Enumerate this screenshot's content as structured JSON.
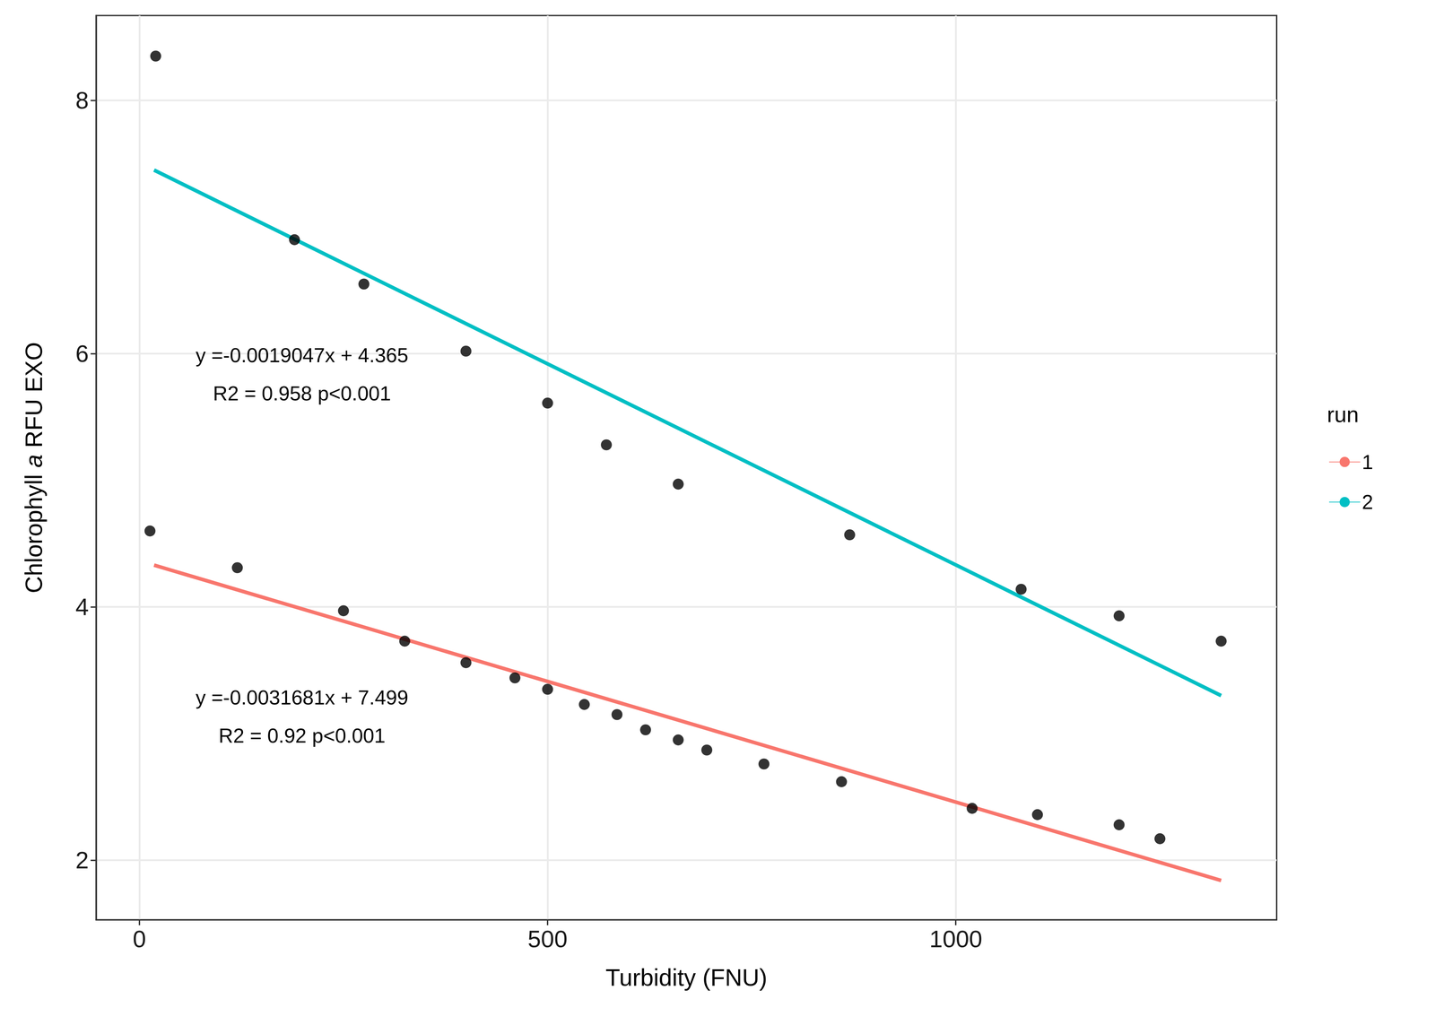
{
  "chart_data": {
    "type": "scatter",
    "x_label": "Turbidity (FNU)",
    "y_label": "Chlorophyll a RFU EXO",
    "xlim": [
      -53,
      1393
    ],
    "ylim": [
      1.53,
      8.67
    ],
    "xticks": [
      0,
      500,
      1000
    ],
    "yticks": [
      2,
      4,
      6,
      8
    ],
    "grid": true,
    "legend": "right",
    "legend_title": "run",
    "series": [
      {
        "name": "1",
        "color": "#F8766D",
        "marker": "circle",
        "line_style": "solid",
        "x": [
          13,
          120,
          250,
          325,
          400,
          460,
          500,
          545,
          585,
          620,
          660,
          695,
          765,
          860,
          1020,
          1100,
          1200,
          1250
        ],
        "values": [
          4.6,
          4.31,
          3.97,
          3.73,
          3.56,
          3.44,
          3.35,
          3.23,
          3.15,
          3.03,
          2.95,
          2.87,
          2.76,
          2.62,
          2.41,
          2.36,
          2.28,
          2.17
        ],
        "fit_x": [
          18,
          1325
        ],
        "fit_values": [
          4.33,
          1.84
        ]
      },
      {
        "name": "2",
        "color": "#00BFC4",
        "marker": "circle",
        "line_style": "solid",
        "x": [
          20,
          190,
          275,
          400,
          500,
          572,
          660,
          870,
          1080,
          1200,
          1325
        ],
        "values": [
          8.35,
          6.9,
          6.55,
          6.02,
          5.61,
          5.28,
          4.97,
          4.57,
          4.14,
          3.93,
          3.73
        ],
        "fit_x": [
          18,
          1325
        ],
        "fit_values": [
          7.45,
          3.3
        ]
      }
    ],
    "annotations": [
      "y =-0.0019047x + 4.365",
      "R2 = 0.958 p<0.001",
      "y =-0.0031681x + 7.499",
      "R2 = 0.92 p<0.001"
    ]
  }
}
